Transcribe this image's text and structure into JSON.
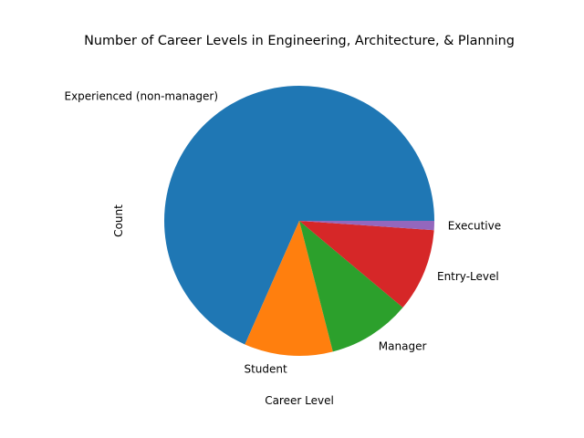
{
  "chart_data": {
    "type": "pie",
    "title": "Number of Career Levels in Engineering, Architecture, & Planning",
    "xlabel": "Career Level",
    "ylabel": "Count",
    "start_angle_deg": 0,
    "direction": "counterclockwise",
    "categories": [
      "Experienced (non-manager)",
      "Student",
      "Manager",
      "Entry-Level",
      "Executive"
    ],
    "values": [
      68.4,
      10.6,
      9.9,
      10.0,
      1.1
    ],
    "colors": [
      "#1f77b4",
      "#ff7f0e",
      "#2ca02c",
      "#d62728",
      "#9467bd"
    ],
    "legend": "none"
  }
}
